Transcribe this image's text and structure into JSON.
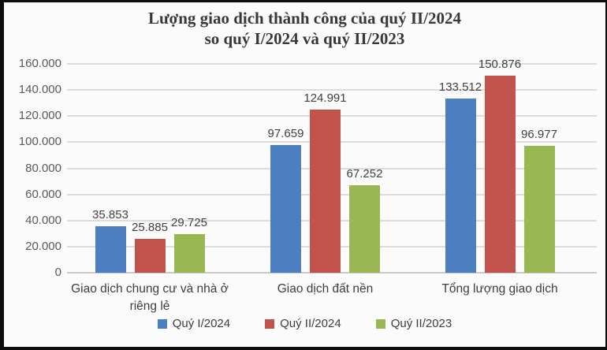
{
  "title": {
    "line1": "Lượng giao dịch thành công của quý II/2024",
    "line2": "so quý I/2024 và quý II/2023"
  },
  "colors": {
    "series_blue": "#4d7fc0",
    "series_red": "#c2524c",
    "series_green": "#99b854",
    "gridline": "#dcdcdc",
    "baseline": "#c9c9c9",
    "tick_text": "#595959",
    "label_text": "#404040",
    "title_text": "#383838",
    "frame_border": "#0d0d0d",
    "background": "#fbfbfb"
  },
  "chart_data": {
    "type": "bar",
    "title": "Lượng giao dịch thành công của quý II/2024 so quý I/2024 và quý II/2023",
    "xlabel": "",
    "ylabel": "",
    "ylim": [
      0,
      160000
    ],
    "ytick_step": 20000,
    "yticks": [
      "0",
      "20.000",
      "40.000",
      "60.000",
      "80.000",
      "100.000",
      "120.000",
      "140.000",
      "160.000"
    ],
    "grid": true,
    "legend_position": "bottom",
    "categories": [
      "Giao dịch chung cư và nhà ở riêng lẻ",
      "Giao dịch đất nền",
      "Tổng lượng giao dịch"
    ],
    "series": [
      {
        "name": "Quý I/2024",
        "color": "#4d7fc0",
        "values": [
          35853,
          97659,
          133512
        ],
        "labels": [
          "35.853",
          "97.659",
          "133.512"
        ]
      },
      {
        "name": "Quý II/2024",
        "color": "#c2524c",
        "values": [
          25885,
          124991,
          150876
        ],
        "labels": [
          "25.885",
          "124.991",
          "150.876"
        ]
      },
      {
        "name": "Quý II/2023",
        "color": "#99b854",
        "values": [
          29725,
          67252,
          96977
        ],
        "labels": [
          "29.725",
          "67.252",
          "96.977"
        ]
      }
    ]
  }
}
